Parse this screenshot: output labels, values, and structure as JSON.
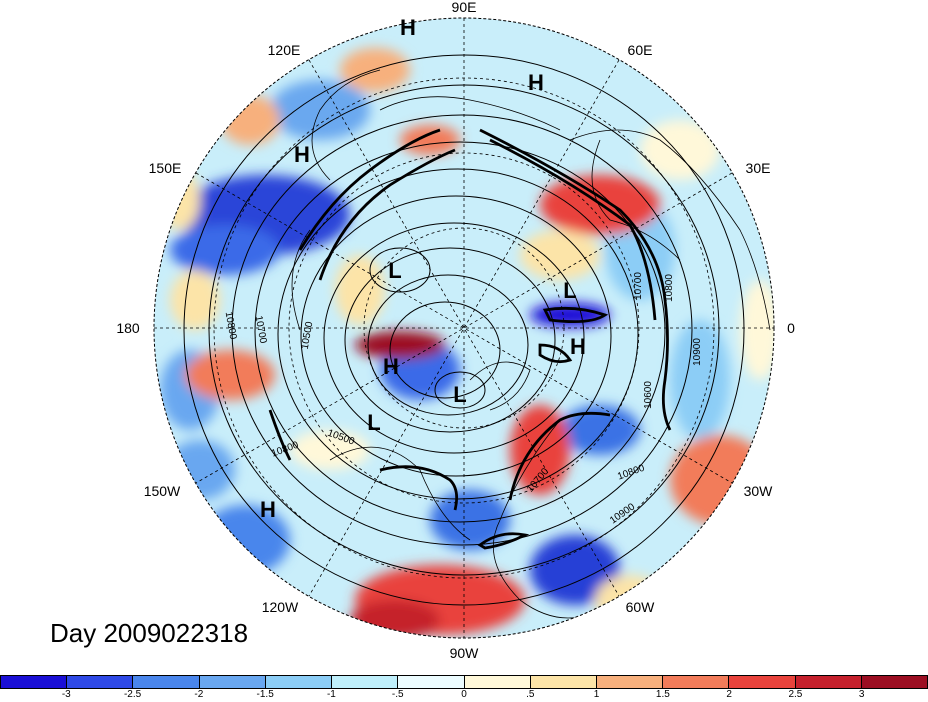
{
  "title": "Day 2009022318",
  "longitude_labels": {
    "lon_90E": "90E",
    "lon_120E": "120E",
    "lon_60E": "60E",
    "lon_150E": "150E",
    "lon_30E": "30E",
    "lon_180": "180",
    "lon_0": "0",
    "lon_150W": "150W",
    "lon_30W": "30W",
    "lon_120W": "120W",
    "lon_60W": "60W",
    "lon_90W": "90W"
  },
  "pressure_centers": [
    {
      "label": "H"
    },
    {
      "label": "H"
    },
    {
      "label": "H"
    },
    {
      "label": "H"
    },
    {
      "label": "H"
    },
    {
      "label": "H"
    },
    {
      "label": "L"
    },
    {
      "label": "L"
    },
    {
      "label": "L"
    },
    {
      "label": "L"
    }
  ],
  "contour_labels": [
    "10500",
    "10700",
    "10800",
    "10800",
    "10500",
    "10700",
    "10800",
    "10900",
    "10900",
    "10600",
    "10800",
    "10700"
  ],
  "colorbar": {
    "colors": [
      "#1a0fd6",
      "#2e49e6",
      "#4a86ec",
      "#69a7f0",
      "#8ccdf6",
      "#bfeffb",
      "#ecfcff",
      "#fff8d9",
      "#fce4a8",
      "#f7b07d",
      "#f27c5a",
      "#e9433c",
      "#c5202c",
      "#9c0e22"
    ],
    "labels": [
      "-3",
      "-2.5",
      "-2",
      "-1.5",
      "-1",
      "-.5",
      "0",
      ".5",
      "1",
      "1.5",
      "2",
      "2.5",
      "3"
    ]
  }
}
